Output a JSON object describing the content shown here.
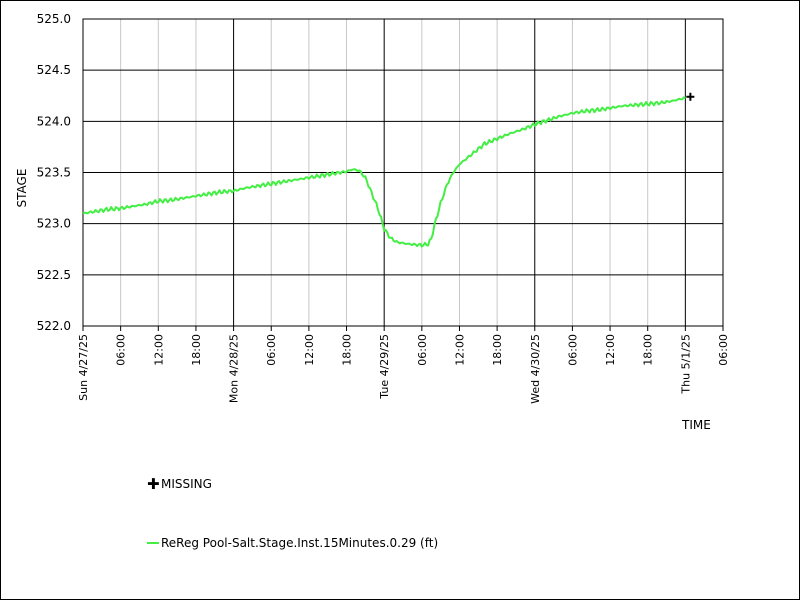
{
  "chart_data": {
    "type": "line",
    "title": "",
    "xlabel": "TIME",
    "ylabel": "STAGE",
    "ylim": [
      522.0,
      525.0
    ],
    "y_ticks": [
      "525.0",
      "524.5",
      "524.0",
      "523.5",
      "523.0",
      "522.5",
      "522.0"
    ],
    "x_range_hours": [
      0,
      102
    ],
    "x_tick_labels": [
      {
        "hour": 0,
        "label": "Sun 4/27/25",
        "major": true
      },
      {
        "hour": 6,
        "label": "06:00",
        "major": false
      },
      {
        "hour": 12,
        "label": "12:00",
        "major": false
      },
      {
        "hour": 18,
        "label": "18:00",
        "major": false
      },
      {
        "hour": 24,
        "label": "Mon 4/28/25",
        "major": true
      },
      {
        "hour": 30,
        "label": "06:00",
        "major": false
      },
      {
        "hour": 36,
        "label": "12:00",
        "major": false
      },
      {
        "hour": 42,
        "label": "18:00",
        "major": false
      },
      {
        "hour": 48,
        "label": "Tue 4/29/25",
        "major": true
      },
      {
        "hour": 54,
        "label": "06:00",
        "major": false
      },
      {
        "hour": 60,
        "label": "12:00",
        "major": false
      },
      {
        "hour": 66,
        "label": "18:00",
        "major": false
      },
      {
        "hour": 72,
        "label": "Wed 4/30/25",
        "major": true
      },
      {
        "hour": 78,
        "label": "06:00",
        "major": false
      },
      {
        "hour": 84,
        "label": "12:00",
        "major": false
      },
      {
        "hour": 90,
        "label": "18:00",
        "major": false
      },
      {
        "hour": 96,
        "label": "Thu 5/1/25",
        "major": true
      },
      {
        "hour": 102,
        "label": "06:00",
        "major": false
      }
    ],
    "grid": true,
    "series": [
      {
        "name": "ReReg Pool-Salt.Stage.Inst.15Minutes.0.29 (ft)",
        "color": "#44ee44",
        "points": [
          [
            0,
            523.1
          ],
          [
            2,
            523.12
          ],
          [
            4,
            523.14
          ],
          [
            6,
            523.15
          ],
          [
            8,
            523.17
          ],
          [
            10,
            523.19
          ],
          [
            12,
            523.22
          ],
          [
            14,
            523.23
          ],
          [
            16,
            523.25
          ],
          [
            18,
            523.27
          ],
          [
            20,
            523.29
          ],
          [
            22,
            523.31
          ],
          [
            24,
            523.32
          ],
          [
            26,
            523.35
          ],
          [
            28,
            523.37
          ],
          [
            30,
            523.39
          ],
          [
            32,
            523.41
          ],
          [
            34,
            523.43
          ],
          [
            36,
            523.45
          ],
          [
            38,
            523.47
          ],
          [
            40,
            523.49
          ],
          [
            42,
            523.51
          ],
          [
            43,
            523.53
          ],
          [
            44,
            523.52
          ],
          [
            45,
            523.45
          ],
          [
            46,
            523.3
          ],
          [
            47,
            523.15
          ],
          [
            48,
            522.95
          ],
          [
            49,
            522.86
          ],
          [
            50,
            522.82
          ],
          [
            52,
            522.8
          ],
          [
            54,
            522.79
          ],
          [
            55,
            522.8
          ],
          [
            55.5,
            522.85
          ],
          [
            56,
            522.98
          ],
          [
            57,
            523.2
          ],
          [
            58,
            523.38
          ],
          [
            59,
            523.5
          ],
          [
            60,
            523.58
          ],
          [
            62,
            523.68
          ],
          [
            64,
            523.78
          ],
          [
            66,
            523.83
          ],
          [
            68,
            523.88
          ],
          [
            70,
            523.92
          ],
          [
            72,
            523.97
          ],
          [
            74,
            524.01
          ],
          [
            76,
            524.05
          ],
          [
            78,
            524.08
          ],
          [
            80,
            524.1
          ],
          [
            82,
            524.11
          ],
          [
            84,
            524.13
          ],
          [
            86,
            524.15
          ],
          [
            88,
            524.16
          ],
          [
            90,
            524.17
          ],
          [
            92,
            524.18
          ],
          [
            94,
            524.2
          ],
          [
            96,
            524.23
          ]
        ]
      }
    ],
    "missing": [
      [
        96.8,
        524.24
      ]
    ],
    "legend": {
      "missing_label": "MISSING",
      "placement": "bottom-left"
    }
  }
}
